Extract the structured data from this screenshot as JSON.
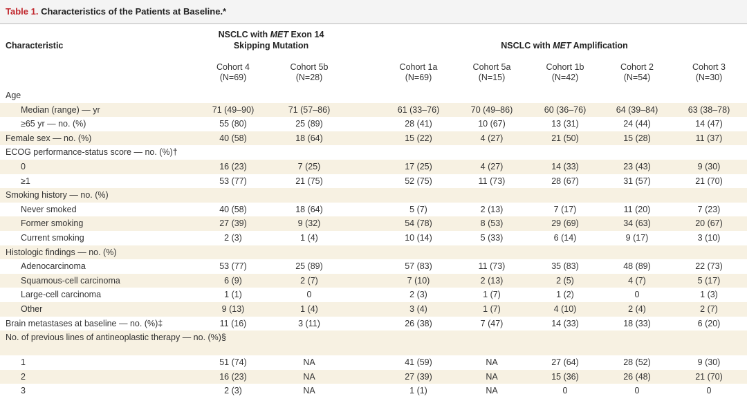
{
  "header": {
    "label": "Table 1.",
    "title": "Characteristics of the Patients at Baseline.*"
  },
  "table": {
    "column_header": "Characteristic",
    "groups": [
      {
        "before": "NSCLC with ",
        "italic": "MET",
        "after": " Exon 14 Skipping Mutation"
      },
      {
        "before": "NSCLC with ",
        "italic": "MET",
        "after": " Amplification"
      }
    ],
    "cohorts": [
      {
        "name": "Cohort 4",
        "n": "(N=69)"
      },
      {
        "name": "Cohort 5b",
        "n": "(N=28)"
      },
      {
        "name": "Cohort 1a",
        "n": "(N=69)"
      },
      {
        "name": "Cohort 5a",
        "n": "(N=15)"
      },
      {
        "name": "Cohort 1b",
        "n": "(N=42)"
      },
      {
        "name": "Cohort 2",
        "n": "(N=54)"
      },
      {
        "name": "Cohort 3",
        "n": "(N=30)"
      }
    ],
    "rows": [
      {
        "label": "Age"
      },
      {
        "label": "Median (range) — yr",
        "level": 1,
        "values": [
          "71 (49–90)",
          "71 (57–86)",
          "61 (33–76)",
          "70 (49–86)",
          "60 (36–76)",
          "64 (39–84)",
          "63 (38–78)"
        ]
      },
      {
        "label": "≥65 yr — no. (%)",
        "level": 1,
        "values": [
          "55 (80)",
          "25 (89)",
          "28 (41)",
          "10 (67)",
          "13 (31)",
          "24 (44)",
          "14 (47)"
        ]
      },
      {
        "label": "Female sex — no. (%)",
        "values": [
          "40 (58)",
          "18 (64)",
          "15 (22)",
          "4 (27)",
          "21 (50)",
          "15 (28)",
          "11 (37)"
        ]
      },
      {
        "label": "ECOG performance-status score — no. (%)†"
      },
      {
        "label": "0",
        "level": 1,
        "values": [
          "16 (23)",
          "7 (25)",
          "17 (25)",
          "4 (27)",
          "14 (33)",
          "23 (43)",
          "9 (30)"
        ]
      },
      {
        "label": "≥1",
        "level": 1,
        "values": [
          "53 (77)",
          "21 (75)",
          "52 (75)",
          "11 (73)",
          "28 (67)",
          "31 (57)",
          "21 (70)"
        ]
      },
      {
        "label": "Smoking history — no. (%)"
      },
      {
        "label": "Never smoked",
        "level": 1,
        "values": [
          "40 (58)",
          "18 (64)",
          "5 (7)",
          "2 (13)",
          "7 (17)",
          "11 (20)",
          "7 (23)"
        ]
      },
      {
        "label": "Former smoking",
        "level": 1,
        "values": [
          "27 (39)",
          "9 (32)",
          "54 (78)",
          "8 (53)",
          "29 (69)",
          "34 (63)",
          "20 (67)"
        ]
      },
      {
        "label": "Current smoking",
        "level": 1,
        "values": [
          "2 (3)",
          "1 (4)",
          "10 (14)",
          "5 (33)",
          "6 (14)",
          "9 (17)",
          "3 (10)"
        ]
      },
      {
        "label": "Histologic findings — no. (%)"
      },
      {
        "label": "Adenocarcinoma",
        "level": 1,
        "values": [
          "53 (77)",
          "25 (89)",
          "57 (83)",
          "11 (73)",
          "35 (83)",
          "48 (89)",
          "22 (73)"
        ]
      },
      {
        "label": "Squamous-cell carcinoma",
        "level": 1,
        "values": [
          "6 (9)",
          "2 (7)",
          "7 (10)",
          "2 (13)",
          "2 (5)",
          "4 (7)",
          "5 (17)"
        ]
      },
      {
        "label": "Large-cell carcinoma",
        "level": 1,
        "values": [
          "1 (1)",
          "0",
          "2 (3)",
          "1 (7)",
          "1 (2)",
          "0",
          "1 (3)"
        ]
      },
      {
        "label": "Other",
        "level": 1,
        "values": [
          "9 (13)",
          "1 (4)",
          "3 (4)",
          "1 (7)",
          "4 (10)",
          "2 (4)",
          "2 (7)"
        ]
      },
      {
        "label": "Brain metastases at baseline — no. (%)‡",
        "values": [
          "11 (16)",
          "3 (11)",
          "26 (38)",
          "7 (47)",
          "14 (33)",
          "18 (33)",
          "6 (20)"
        ]
      },
      {
        "label": "No. of previous lines of antineoplastic therapy — no. (%)§"
      },
      {
        "label": "1",
        "level": 1,
        "values": [
          "51 (74)",
          "NA",
          "41 (59)",
          "NA",
          "27 (64)",
          "28 (52)",
          "9 (30)"
        ]
      },
      {
        "label": "2",
        "level": 1,
        "values": [
          "16 (23)",
          "NA",
          "27 (39)",
          "NA",
          "15 (36)",
          "26 (48)",
          "21 (70)"
        ]
      },
      {
        "label": "3",
        "level": 1,
        "values": [
          "2 (3)",
          "NA",
          "1 (1)",
          "NA",
          "0",
          "0",
          "0"
        ]
      }
    ]
  }
}
